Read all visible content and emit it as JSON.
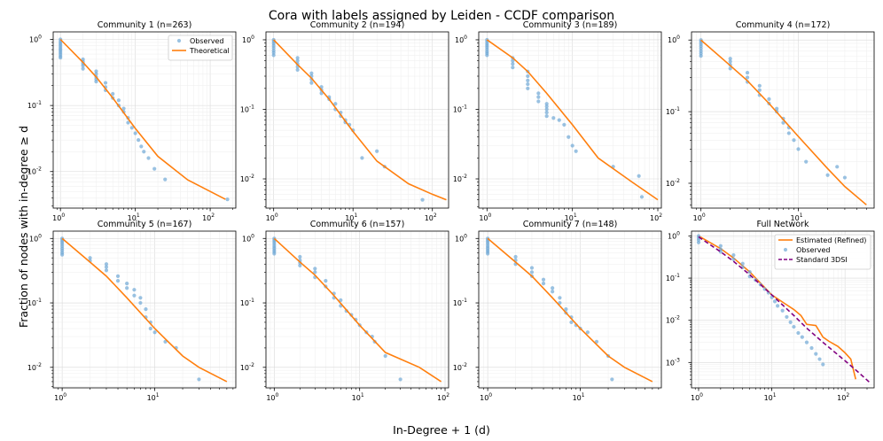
{
  "figure": {
    "title": "Cora with labels assigned by Leiden - CCDF comparison",
    "xlabel": "In-Degree + 1 (d)",
    "ylabel": "Fraction of nodes with in-degree ≥ d"
  },
  "colors": {
    "observed": "#6fa8d6",
    "theoretical": "#ff7f0e",
    "standard": "#800080"
  },
  "chart_data": [
    {
      "type": "line",
      "title": "Community 1 (n=263)",
      "xscale": "log",
      "yscale": "log",
      "xlim": [
        0.8,
        220
      ],
      "ylim": [
        0.0028,
        1.3
      ],
      "grid": true,
      "legend": "top-right",
      "series": [
        {
          "name": "Observed",
          "kind": "scatter",
          "x": [
            1,
            1,
            1,
            1,
            1,
            1,
            1,
            1,
            1,
            1,
            1,
            2,
            2,
            2,
            2,
            2,
            3,
            3,
            3,
            3,
            3,
            4,
            4,
            4,
            5,
            5,
            6,
            6,
            7,
            7,
            8,
            8,
            9,
            10,
            11,
            12,
            13,
            15,
            18,
            25,
            170
          ],
          "y": [
            1.0,
            0.93,
            0.87,
            0.82,
            0.77,
            0.72,
            0.68,
            0.64,
            0.6,
            0.56,
            0.53,
            0.5,
            0.46,
            0.43,
            0.4,
            0.36,
            0.33,
            0.3,
            0.27,
            0.25,
            0.23,
            0.22,
            0.19,
            0.17,
            0.15,
            0.13,
            0.12,
            0.1,
            0.09,
            0.08,
            0.065,
            0.055,
            0.046,
            0.038,
            0.03,
            0.024,
            0.02,
            0.016,
            0.011,
            0.0076,
            0.0038
          ]
        },
        {
          "name": "Theoretical",
          "kind": "line",
          "x": [
            1,
            2,
            3,
            5,
            10,
            20,
            50,
            100,
            160
          ],
          "y": [
            1.0,
            0.45,
            0.27,
            0.13,
            0.045,
            0.017,
            0.0075,
            0.005,
            0.0038
          ]
        }
      ]
    },
    {
      "type": "line",
      "title": "Community 2 (n=194)",
      "xscale": "log",
      "yscale": "log",
      "xlim": [
        0.8,
        160
      ],
      "ylim": [
        0.0038,
        1.3
      ],
      "grid": true,
      "series": [
        {
          "kind": "scatter",
          "x": [
            1,
            1,
            1,
            1,
            1,
            1,
            1,
            1,
            2,
            2,
            2,
            2,
            2,
            3,
            3,
            3,
            3,
            4,
            4,
            4,
            5,
            5,
            6,
            6,
            7,
            7,
            8,
            8,
            9,
            10,
            13,
            20,
            25,
            75
          ],
          "y": [
            1.0,
            0.94,
            0.88,
            0.82,
            0.76,
            0.7,
            0.65,
            0.6,
            0.55,
            0.5,
            0.45,
            0.41,
            0.37,
            0.33,
            0.3,
            0.27,
            0.24,
            0.21,
            0.19,
            0.17,
            0.15,
            0.14,
            0.12,
            0.1,
            0.09,
            0.08,
            0.07,
            0.065,
            0.06,
            0.05,
            0.02,
            0.025,
            0.015,
            0.005
          ]
        },
        {
          "kind": "line",
          "x": [
            1,
            2,
            3,
            5,
            10,
            20,
            50,
            100,
            150
          ],
          "y": [
            1.0,
            0.44,
            0.28,
            0.14,
            0.048,
            0.018,
            0.0085,
            0.006,
            0.005
          ]
        }
      ]
    },
    {
      "type": "line",
      "title": "Community 3 (n=189)",
      "xscale": "log",
      "yscale": "log",
      "xlim": [
        0.8,
        110
      ],
      "ylim": [
        0.0038,
        1.3
      ],
      "grid": true,
      "series": [
        {
          "kind": "scatter",
          "x": [
            1,
            1,
            1,
            1,
            1,
            1,
            1,
            1,
            1,
            2,
            2,
            2,
            2,
            3,
            3,
            3,
            3,
            3,
            4,
            4,
            4,
            5,
            5,
            5,
            5,
            5,
            6,
            7,
            8,
            9,
            10,
            11,
            30,
            60,
            65
          ],
          "y": [
            1.0,
            0.94,
            0.88,
            0.83,
            0.78,
            0.73,
            0.68,
            0.64,
            0.6,
            0.55,
            0.5,
            0.45,
            0.4,
            0.35,
            0.3,
            0.26,
            0.23,
            0.2,
            0.17,
            0.15,
            0.13,
            0.12,
            0.11,
            0.1,
            0.09,
            0.08,
            0.075,
            0.07,
            0.06,
            0.04,
            0.03,
            0.025,
            0.015,
            0.011,
            0.0055
          ]
        },
        {
          "kind": "line",
          "x": [
            1,
            2,
            3,
            5,
            10,
            20,
            50,
            100
          ],
          "y": [
            1.0,
            0.55,
            0.35,
            0.17,
            0.06,
            0.02,
            0.009,
            0.005
          ]
        }
      ]
    },
    {
      "type": "line",
      "title": "Community 4 (n=172)",
      "xscale": "log",
      "yscale": "log",
      "xlim": [
        0.8,
        60
      ],
      "ylim": [
        0.0045,
        1.3
      ],
      "grid": true,
      "series": [
        {
          "kind": "scatter",
          "x": [
            1,
            1,
            1,
            1,
            1,
            1,
            1,
            1,
            2,
            2,
            2,
            2,
            3,
            3,
            3,
            4,
            4,
            4,
            5,
            5,
            6,
            6,
            7,
            7,
            8,
            8,
            9,
            10,
            12,
            20,
            25,
            30
          ],
          "y": [
            1.0,
            0.94,
            0.88,
            0.82,
            0.76,
            0.7,
            0.65,
            0.6,
            0.55,
            0.5,
            0.45,
            0.4,
            0.35,
            0.3,
            0.26,
            0.23,
            0.2,
            0.17,
            0.15,
            0.13,
            0.11,
            0.1,
            0.08,
            0.07,
            0.06,
            0.05,
            0.04,
            0.03,
            0.02,
            0.013,
            0.017,
            0.012
          ]
        },
        {
          "kind": "line",
          "x": [
            1,
            2,
            3,
            5,
            10,
            20,
            30,
            50
          ],
          "y": [
            1.0,
            0.44,
            0.27,
            0.13,
            0.045,
            0.016,
            0.009,
            0.005
          ]
        }
      ]
    },
    {
      "type": "line",
      "title": "Community 5 (n=167)",
      "xscale": "log",
      "yscale": "log",
      "xlim": [
        0.8,
        75
      ],
      "ylim": [
        0.0048,
        1.3
      ],
      "grid": true,
      "series": [
        {
          "kind": "scatter",
          "x": [
            1,
            1,
            1,
            1,
            1,
            1,
            1,
            1,
            1,
            2,
            2,
            3,
            3,
            3,
            4,
            4,
            5,
            5,
            6,
            6,
            7,
            7,
            8,
            8,
            9,
            9,
            10,
            13,
            17,
            30
          ],
          "y": [
            1.0,
            0.94,
            0.88,
            0.82,
            0.76,
            0.7,
            0.65,
            0.6,
            0.56,
            0.5,
            0.45,
            0.4,
            0.36,
            0.32,
            0.26,
            0.22,
            0.2,
            0.17,
            0.16,
            0.13,
            0.12,
            0.1,
            0.08,
            0.06,
            0.05,
            0.04,
            0.035,
            0.025,
            0.02,
            0.0065
          ]
        },
        {
          "kind": "line",
          "x": [
            1,
            2,
            3,
            5,
            10,
            20,
            30,
            60
          ],
          "y": [
            1.0,
            0.43,
            0.26,
            0.12,
            0.04,
            0.015,
            0.01,
            0.006
          ]
        }
      ]
    },
    {
      "type": "line",
      "title": "Community 6 (n=157)",
      "xscale": "log",
      "yscale": "log",
      "xlim": [
        0.8,
        110
      ],
      "ylim": [
        0.0048,
        1.3
      ],
      "grid": true,
      "series": [
        {
          "kind": "scatter",
          "x": [
            1,
            1,
            1,
            1,
            1,
            1,
            1,
            1,
            1,
            2,
            2,
            2,
            2,
            3,
            3,
            3,
            4,
            4,
            5,
            5,
            6,
            6,
            7,
            8,
            9,
            10,
            12,
            14,
            15,
            20,
            30
          ],
          "y": [
            1.0,
            0.94,
            0.88,
            0.82,
            0.76,
            0.71,
            0.66,
            0.62,
            0.58,
            0.52,
            0.46,
            0.42,
            0.38,
            0.34,
            0.3,
            0.25,
            0.22,
            0.18,
            0.14,
            0.12,
            0.11,
            0.09,
            0.075,
            0.065,
            0.055,
            0.045,
            0.035,
            0.03,
            0.025,
            0.015,
            0.0065
          ]
        },
        {
          "kind": "line",
          "x": [
            1,
            2,
            3,
            5,
            10,
            20,
            50,
            90
          ],
          "y": [
            1.0,
            0.43,
            0.27,
            0.13,
            0.045,
            0.017,
            0.01,
            0.006
          ]
        }
      ]
    },
    {
      "type": "line",
      "title": "Community 7 (n=148)",
      "xscale": "log",
      "yscale": "log",
      "xlim": [
        0.8,
        75
      ],
      "ylim": [
        0.0048,
        1.3
      ],
      "grid": true,
      "series": [
        {
          "kind": "scatter",
          "x": [
            1,
            1,
            1,
            1,
            1,
            1,
            1,
            1,
            1,
            2,
            2,
            2,
            3,
            3,
            3,
            4,
            4,
            5,
            5,
            6,
            6,
            7,
            7,
            8,
            8,
            9,
            10,
            12,
            15,
            20,
            22
          ],
          "y": [
            1.0,
            0.94,
            0.88,
            0.82,
            0.76,
            0.71,
            0.66,
            0.62,
            0.58,
            0.52,
            0.46,
            0.4,
            0.35,
            0.3,
            0.26,
            0.23,
            0.2,
            0.17,
            0.15,
            0.12,
            0.1,
            0.08,
            0.07,
            0.06,
            0.05,
            0.045,
            0.04,
            0.035,
            0.025,
            0.015,
            0.0065
          ]
        },
        {
          "kind": "line",
          "x": [
            1,
            2,
            3,
            5,
            10,
            20,
            30,
            60
          ],
          "y": [
            1.0,
            0.43,
            0.26,
            0.12,
            0.04,
            0.015,
            0.01,
            0.006
          ]
        }
      ]
    },
    {
      "type": "line",
      "title": "Full Network",
      "xscale": "log",
      "yscale": "log",
      "xlim": [
        0.8,
        250
      ],
      "ylim": [
        0.00025,
        1.3
      ],
      "grid": true,
      "legend": "top-right",
      "series": [
        {
          "name": "Estimated (Refined)",
          "kind": "line",
          "color": "#ff7f0e",
          "x": [
            1,
            2,
            3,
            5,
            8,
            10,
            15,
            20,
            25,
            30,
            40,
            50,
            60,
            80,
            100,
            120,
            140
          ],
          "y": [
            1.0,
            0.5,
            0.3,
            0.14,
            0.06,
            0.04,
            0.025,
            0.018,
            0.013,
            0.008,
            0.0075,
            0.004,
            0.0032,
            0.0024,
            0.0017,
            0.0012,
            0.0004
          ]
        },
        {
          "name": "Observed",
          "kind": "scatter",
          "color": "#6fa8d6",
          "x": [
            1,
            1,
            1,
            1,
            2,
            2,
            2,
            3,
            3,
            4,
            4,
            5,
            5,
            6,
            7,
            8,
            9,
            10,
            11,
            12,
            14,
            16,
            18,
            20,
            23,
            26,
            30,
            35,
            40,
            45,
            50
          ],
          "y": [
            1.0,
            0.9,
            0.8,
            0.7,
            0.58,
            0.48,
            0.42,
            0.35,
            0.28,
            0.22,
            0.18,
            0.14,
            0.11,
            0.09,
            0.07,
            0.055,
            0.045,
            0.035,
            0.028,
            0.022,
            0.017,
            0.012,
            0.009,
            0.007,
            0.005,
            0.004,
            0.003,
            0.0022,
            0.0016,
            0.0012,
            0.0009
          ]
        },
        {
          "name": "Standard 3DSI",
          "kind": "dashed",
          "color": "#800080",
          "x": [
            1,
            2,
            3,
            5,
            10,
            20,
            30,
            50,
            100,
            150,
            220
          ],
          "y": [
            0.95,
            0.42,
            0.25,
            0.12,
            0.04,
            0.013,
            0.0065,
            0.003,
            0.0011,
            0.0006,
            0.00033
          ]
        }
      ]
    }
  ]
}
